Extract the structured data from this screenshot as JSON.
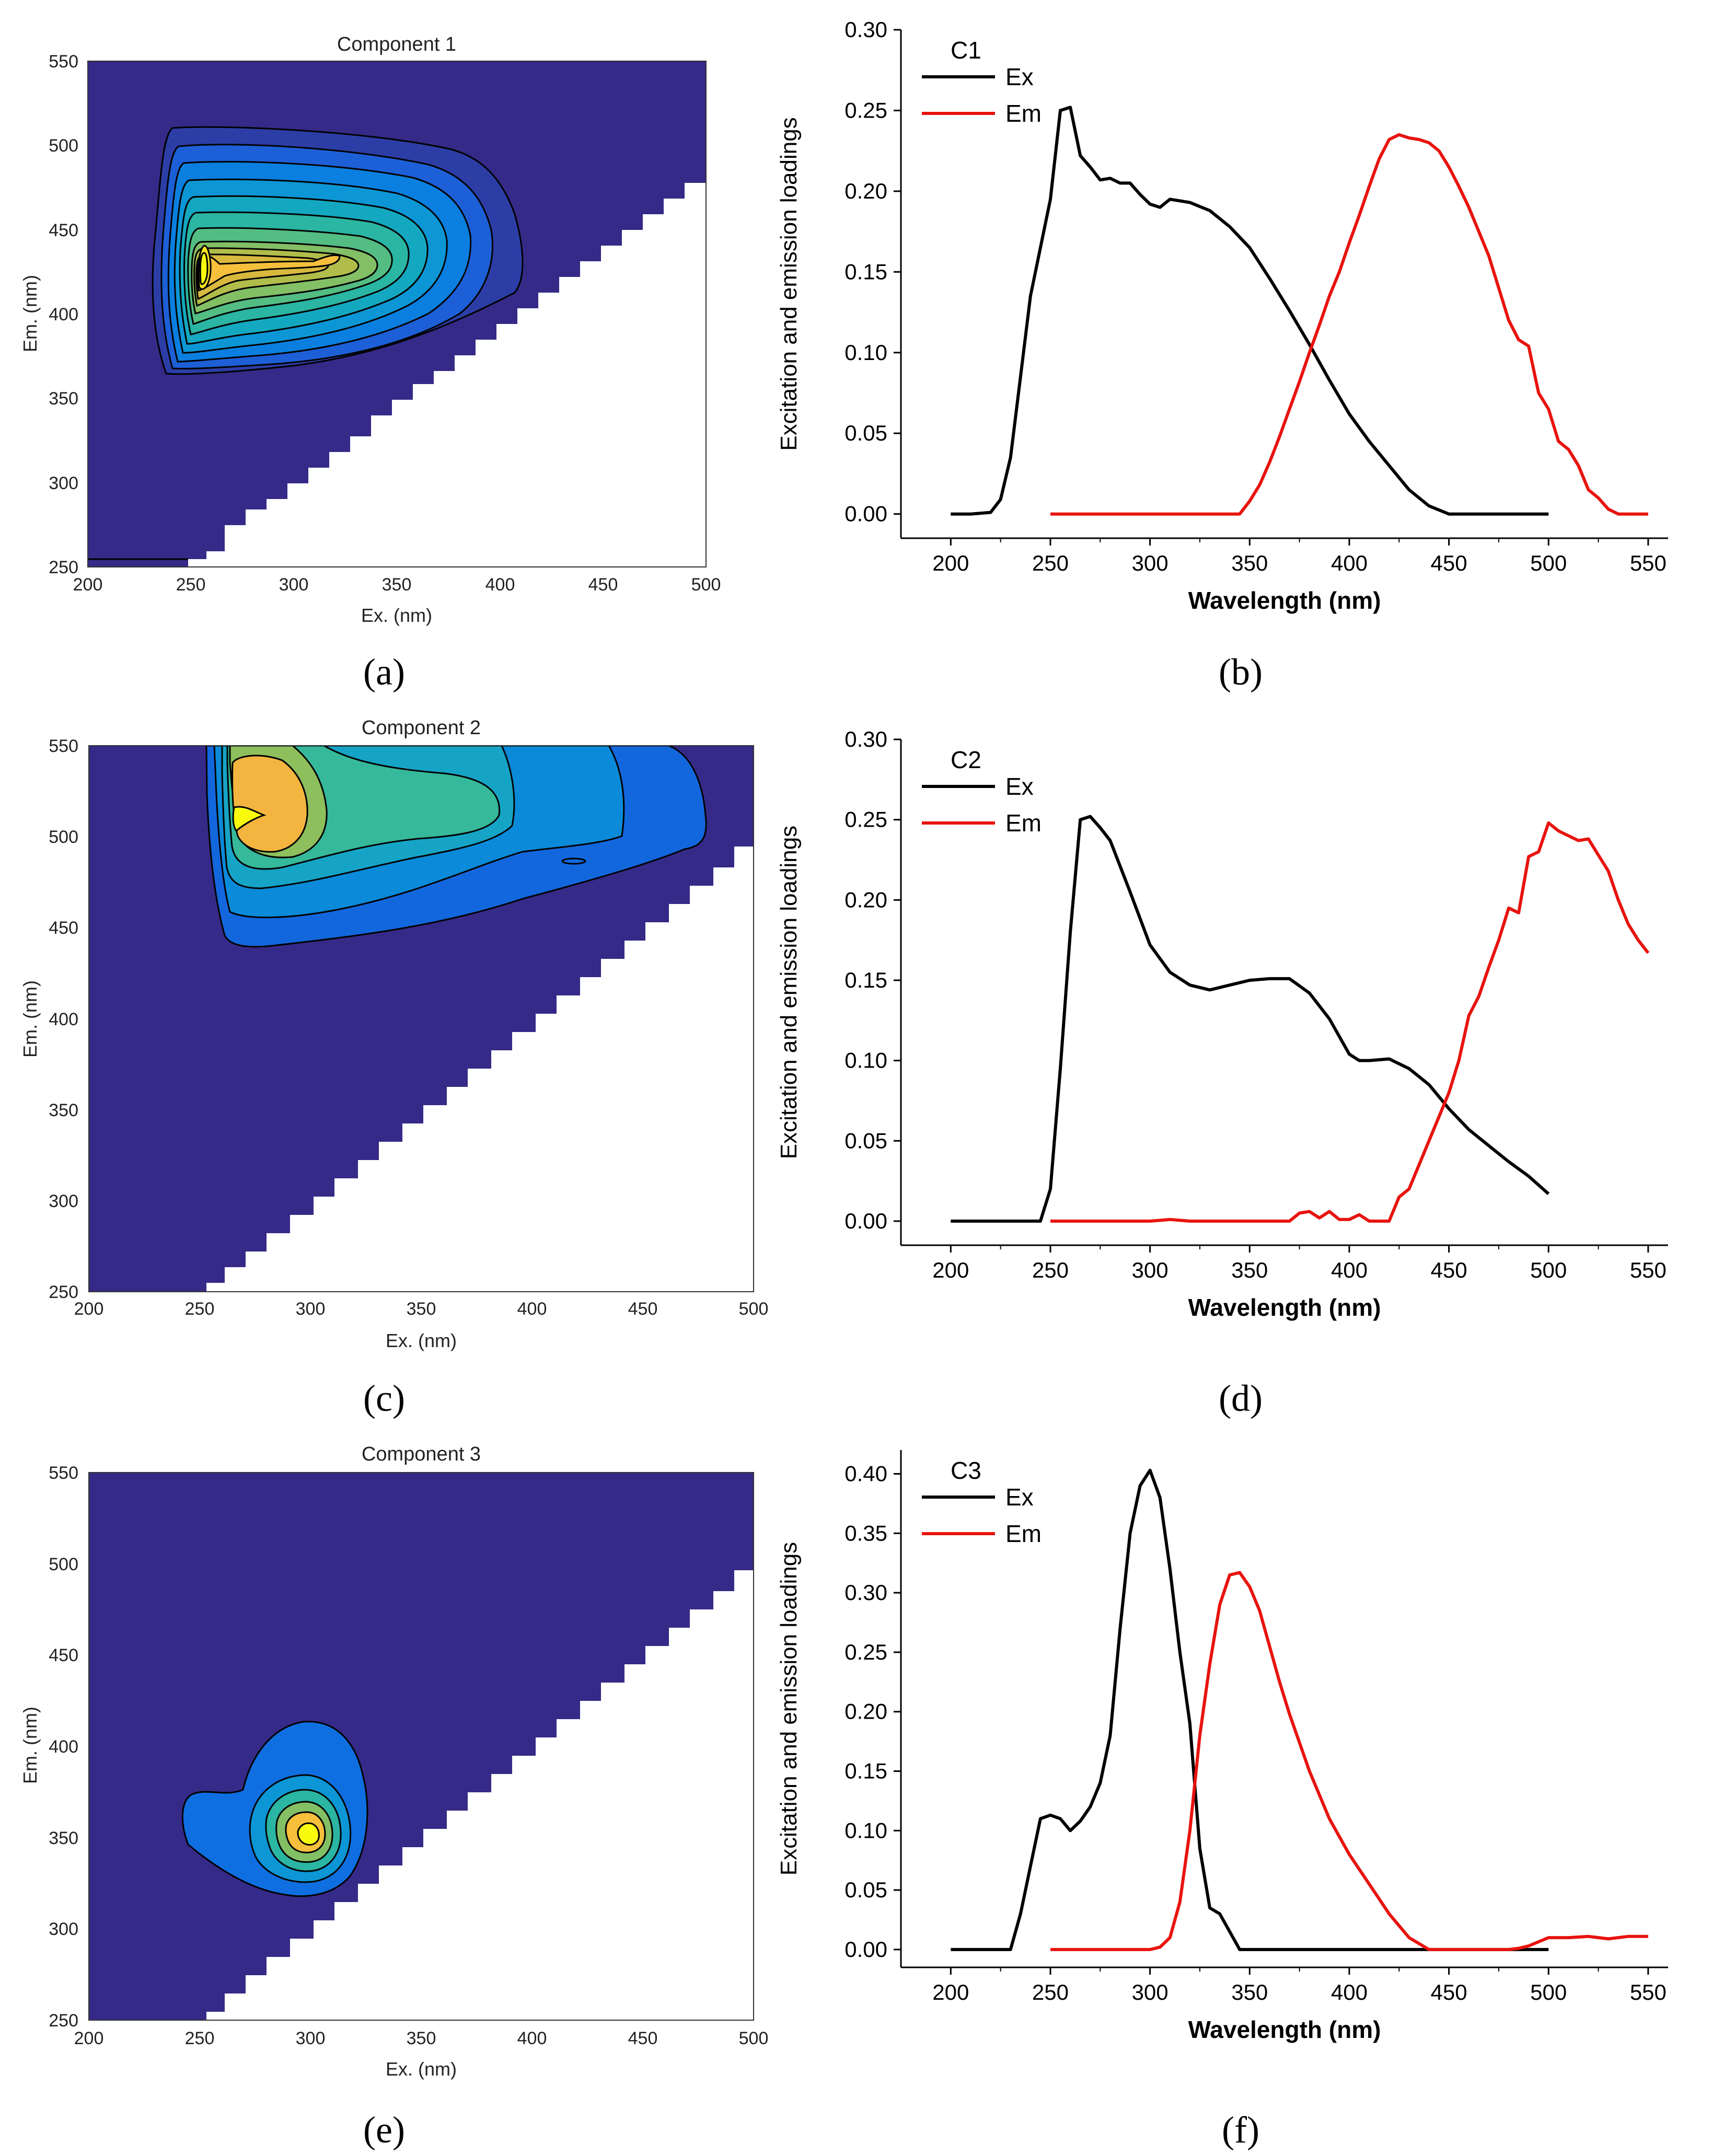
{
  "chart_data": [
    {
      "panel": "a",
      "type": "heatmap",
      "title": "Component 1",
      "xlabel": "Ex. (nm)",
      "ylabel": "Em. (nm)",
      "xlim": [
        200,
        500
      ],
      "ylim": [
        250,
        550
      ],
      "xticks": [
        200,
        250,
        300,
        350,
        400,
        450,
        500
      ],
      "yticks": [
        250,
        300,
        350,
        400,
        450,
        500,
        550
      ],
      "peak": {
        "ex": 255,
        "em": 430
      },
      "fill_colors": [
        "#352a87",
        "#2c3ea6",
        "#1d5fd6",
        "#0a7fe0",
        "#0d96d5",
        "#14a8c0",
        "#2bb5a3",
        "#53bd83",
        "#83bf65",
        "#b1bd4a",
        "#d8b93e",
        "#f6c03c",
        "#f9e21d",
        "#f9fb0e"
      ]
    },
    {
      "panel": "b",
      "type": "line",
      "tag": "C1",
      "xlabel": "Wavelength (nm)",
      "ylabel": "Excitation and emission loadings",
      "xlim": [
        175,
        560
      ],
      "ylim": [
        -0.015,
        0.3
      ],
      "xticks": [
        200,
        250,
        300,
        350,
        400,
        450,
        500,
        550
      ],
      "yticks": [
        "0.00",
        "0.05",
        "0.10",
        "0.15",
        "0.20",
        "0.25",
        "0.30"
      ],
      "series": [
        {
          "name": "Ex",
          "color": "#000000",
          "x": [
            200,
            210,
            220,
            225,
            230,
            235,
            240,
            245,
            250,
            255,
            260,
            265,
            270,
            275,
            280,
            285,
            290,
            295,
            300,
            305,
            310,
            320,
            330,
            340,
            350,
            360,
            370,
            380,
            390,
            400,
            410,
            420,
            430,
            440,
            450,
            460,
            470,
            480,
            490,
            500
          ],
          "y": [
            0,
            0,
            0.001,
            0.009,
            0.035,
            0.085,
            0.135,
            0.165,
            0.195,
            0.25,
            0.252,
            0.222,
            0.215,
            0.207,
            0.208,
            0.205,
            0.205,
            0.198,
            0.192,
            0.19,
            0.195,
            0.193,
            0.188,
            0.178,
            0.165,
            0.146,
            0.126,
            0.105,
            0.083,
            0.062,
            0.045,
            0.03,
            0.015,
            0.005,
            0,
            0,
            0,
            0,
            0,
            0
          ]
        },
        {
          "name": "Em",
          "color": "#e8130e",
          "x": [
            250,
            300,
            345,
            350,
            355,
            360,
            365,
            370,
            375,
            380,
            385,
            390,
            395,
            400,
            405,
            410,
            415,
            420,
            425,
            430,
            435,
            440,
            445,
            450,
            455,
            460,
            465,
            470,
            475,
            480,
            485,
            490,
            495,
            500,
            505,
            510,
            515,
            520,
            525,
            530,
            535,
            540,
            550
          ],
          "y": [
            0,
            0,
            0,
            0.008,
            0.018,
            0.032,
            0.048,
            0.065,
            0.082,
            0.1,
            0.117,
            0.135,
            0.15,
            0.168,
            0.185,
            0.203,
            0.22,
            0.232,
            0.235,
            0.233,
            0.232,
            0.23,
            0.225,
            0.215,
            0.203,
            0.19,
            0.175,
            0.16,
            0.14,
            0.12,
            0.108,
            0.104,
            0.075,
            0.065,
            0.045,
            0.04,
            0.03,
            0.015,
            0.01,
            0.003,
            0,
            0,
            0
          ]
        }
      ]
    },
    {
      "panel": "c",
      "type": "heatmap",
      "title": "Component 2",
      "xlabel": "Ex. (nm)",
      "ylabel": "Em. (nm)",
      "xlim": [
        200,
        500
      ],
      "ylim": [
        250,
        550
      ],
      "xticks": [
        200,
        250,
        300,
        350,
        400,
        450,
        500
      ],
      "yticks": [
        250,
        300,
        350,
        400,
        450,
        500,
        550
      ],
      "peak": {
        "ex": 270,
        "em": 510
      },
      "fill_colors": [
        "#352a87",
        "#1367dd",
        "#0a8ad8",
        "#16a4c6",
        "#35b99a",
        "#8ebf5d",
        "#f3b53f",
        "#f9fb0e"
      ]
    },
    {
      "panel": "d",
      "type": "line",
      "tag": "C2",
      "xlabel": "Wavelength (nm)",
      "ylabel": "Excitation and emission loadings",
      "xlim": [
        175,
        560
      ],
      "ylim": [
        -0.015,
        0.3
      ],
      "xticks": [
        200,
        250,
        300,
        350,
        400,
        450,
        500,
        550
      ],
      "yticks": [
        "0.00",
        "0.05",
        "0.10",
        "0.15",
        "0.20",
        "0.25",
        "0.30"
      ],
      "series": [
        {
          "name": "Ex",
          "color": "#000000",
          "x": [
            200,
            210,
            220,
            230,
            240,
            245,
            250,
            255,
            260,
            265,
            270,
            275,
            280,
            290,
            300,
            310,
            320,
            330,
            340,
            350,
            360,
            370,
            380,
            390,
            400,
            405,
            410,
            420,
            430,
            440,
            450,
            460,
            470,
            480,
            490,
            500
          ],
          "y": [
            0,
            0,
            0,
            0,
            0,
            0,
            0.02,
            0.095,
            0.18,
            0.25,
            0.252,
            0.245,
            0.237,
            0.205,
            0.172,
            0.155,
            0.147,
            0.144,
            0.147,
            0.15,
            0.151,
            0.151,
            0.142,
            0.126,
            0.104,
            0.1,
            0.1,
            0.101,
            0.095,
            0.085,
            0.07,
            0.057,
            0.047,
            0.037,
            0.028,
            0.017
          ]
        },
        {
          "name": "Em",
          "color": "#e8130e",
          "x": [
            250,
            300,
            305,
            310,
            320,
            370,
            375,
            380,
            385,
            390,
            395,
            400,
            405,
            410,
            415,
            420,
            425,
            430,
            435,
            440,
            445,
            450,
            455,
            460,
            465,
            470,
            475,
            480,
            485,
            490,
            495,
            500,
            505,
            510,
            515,
            520,
            525,
            530,
            535,
            540,
            545,
            550
          ],
          "y": [
            0,
            0,
            0.0005,
            0.001,
            0,
            0,
            0.005,
            0.006,
            0.002,
            0.006,
            0.001,
            0.001,
            0.004,
            0,
            0,
            0,
            0.015,
            0.02,
            0.035,
            0.05,
            0.065,
            0.08,
            0.1,
            0.128,
            0.14,
            0.158,
            0.175,
            0.195,
            0.192,
            0.227,
            0.23,
            0.248,
            0.243,
            0.24,
            0.237,
            0.238,
            0.228,
            0.218,
            0.2,
            0.185,
            0.175,
            0.167
          ]
        }
      ]
    },
    {
      "panel": "e",
      "type": "heatmap",
      "title": "Component 3",
      "xlabel": "Ex. (nm)",
      "ylabel": "Em. (nm)",
      "xlim": [
        200,
        500
      ],
      "ylim": [
        250,
        550
      ],
      "xticks": [
        200,
        250,
        300,
        350,
        400,
        450,
        500
      ],
      "yticks": [
        250,
        300,
        350,
        400,
        450,
        500,
        550
      ],
      "peak": {
        "ex": 300,
        "em": 343
      },
      "fill_colors": [
        "#352a87",
        "#0f6fe0",
        "#0d96d5",
        "#2bb5a3",
        "#83bf65",
        "#f6c03c",
        "#f9fb0e"
      ]
    },
    {
      "panel": "f",
      "type": "line",
      "tag": "C3",
      "xlabel": "Wavelength (nm)",
      "ylabel": "Excitation and emission loadings",
      "xlim": [
        175,
        560
      ],
      "ylim": [
        -0.015,
        0.42
      ],
      "xticks": [
        200,
        250,
        300,
        350,
        400,
        450,
        500,
        550
      ],
      "yticks": [
        "0.00",
        "0.05",
        "0.10",
        "0.15",
        "0.20",
        "0.25",
        "0.30",
        "0.35",
        "0.40"
      ],
      "series": [
        {
          "name": "Ex",
          "color": "#000000",
          "x": [
            200,
            210,
            220,
            230,
            235,
            240,
            245,
            250,
            255,
            260,
            265,
            270,
            275,
            280,
            285,
            290,
            295,
            300,
            305,
            310,
            315,
            320,
            325,
            330,
            335,
            340,
            345,
            350,
            400,
            450,
            500
          ],
          "y": [
            0,
            0,
            0,
            0,
            0.03,
            0.07,
            0.11,
            0.113,
            0.11,
            0.1,
            0.108,
            0.12,
            0.14,
            0.18,
            0.27,
            0.35,
            0.39,
            0.403,
            0.38,
            0.32,
            0.25,
            0.19,
            0.085,
            0.035,
            0.03,
            0.015,
            0,
            0,
            0,
            0,
            0
          ]
        },
        {
          "name": "Em",
          "color": "#e8130e",
          "x": [
            250,
            300,
            305,
            310,
            315,
            320,
            325,
            330,
            335,
            340,
            345,
            350,
            355,
            360,
            365,
            370,
            380,
            390,
            400,
            410,
            420,
            430,
            440,
            450,
            460,
            470,
            480,
            485,
            490,
            500,
            510,
            520,
            530,
            540,
            550
          ],
          "y": [
            0,
            0,
            0.002,
            0.01,
            0.04,
            0.1,
            0.18,
            0.24,
            0.29,
            0.315,
            0.317,
            0.305,
            0.285,
            0.255,
            0.225,
            0.198,
            0.15,
            0.11,
            0.08,
            0.055,
            0.03,
            0.01,
            0,
            0,
            0,
            0,
            0,
            0.001,
            0.003,
            0.01,
            0.01,
            0.011,
            0.009,
            0.011,
            0.011
          ]
        }
      ]
    }
  ],
  "panel_labels": {
    "a": "(a)",
    "b": "(b)",
    "c": "(c)",
    "d": "(d)",
    "e": "(e)",
    "f": "(f)"
  }
}
